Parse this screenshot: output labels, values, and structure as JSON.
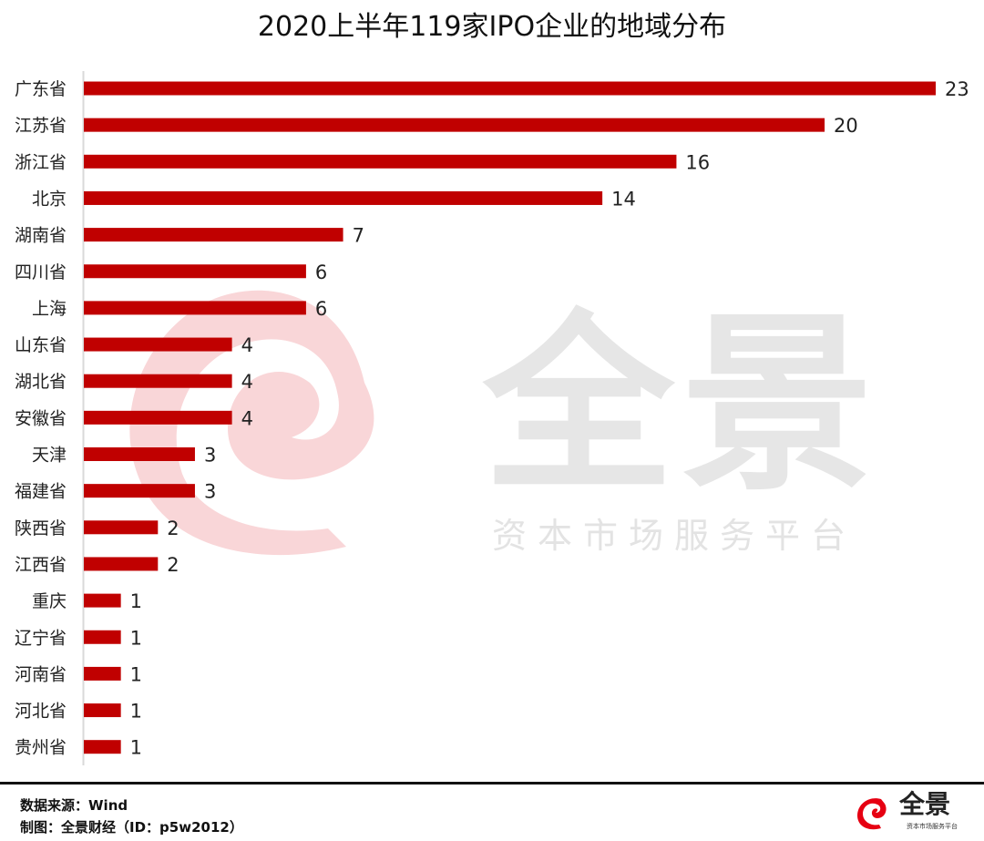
{
  "chart_data": {
    "type": "bar",
    "orientation": "horizontal",
    "title": "2020上半年119家IPO企业的地域分布",
    "categories": [
      "广东省",
      "江苏省",
      "浙江省",
      "北京",
      "湖南省",
      "四川省",
      "上海",
      "山东省",
      "湖北省",
      "安徽省",
      "天津",
      "福建省",
      "陕西省",
      "江西省",
      "重庆",
      "辽宁省",
      "河南省",
      "河北省",
      "贵州省"
    ],
    "values": [
      23,
      20,
      16,
      14,
      7,
      6,
      6,
      4,
      4,
      4,
      3,
      3,
      2,
      2,
      1,
      1,
      1,
      1,
      1
    ],
    "xlim": [
      0,
      23
    ],
    "grid": false,
    "data_labels": true,
    "bar_color": "#C00000"
  },
  "watermark": {
    "brand": "全景",
    "tagline": "资本市场服务平台"
  },
  "footer": {
    "source": "数据来源：Wind",
    "credit": "制图：全景财经（ID：p5w2012）",
    "logo_text": "全景",
    "logo_tagline": "资本市场服务平台"
  }
}
